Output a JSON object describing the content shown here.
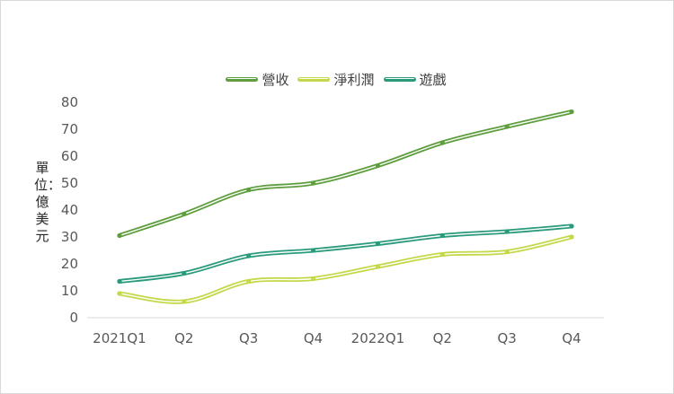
{
  "chart_data": {
    "type": "line",
    "title": "",
    "xlabel": "",
    "ylabel": "單位：億美元",
    "categories": [
      "2021Q1",
      "Q2",
      "Q3",
      "Q4",
      "2022Q1",
      "Q2",
      "Q3",
      "Q4"
    ],
    "yticks": [
      "0",
      "10",
      "20",
      "30",
      "40",
      "50",
      "60",
      "70",
      "80"
    ],
    "ylim": [
      0,
      80
    ],
    "grid": false,
    "legend_position": "top",
    "smooth": true,
    "series": [
      {
        "name": "營收",
        "color": "#5e9e3e",
        "values": [
          30.5,
          38.5,
          47.5,
          50,
          56.5,
          65,
          71,
          76.5
        ]
      },
      {
        "name": "淨利潤",
        "color": "#c5d84a",
        "values": [
          9,
          6,
          13.5,
          14.5,
          19,
          23.5,
          24.5,
          30
        ]
      },
      {
        "name": "遊戲",
        "color": "#2a9a7c",
        "values": [
          13.5,
          16.5,
          23,
          25,
          27.5,
          30.5,
          32,
          34
        ]
      }
    ]
  }
}
